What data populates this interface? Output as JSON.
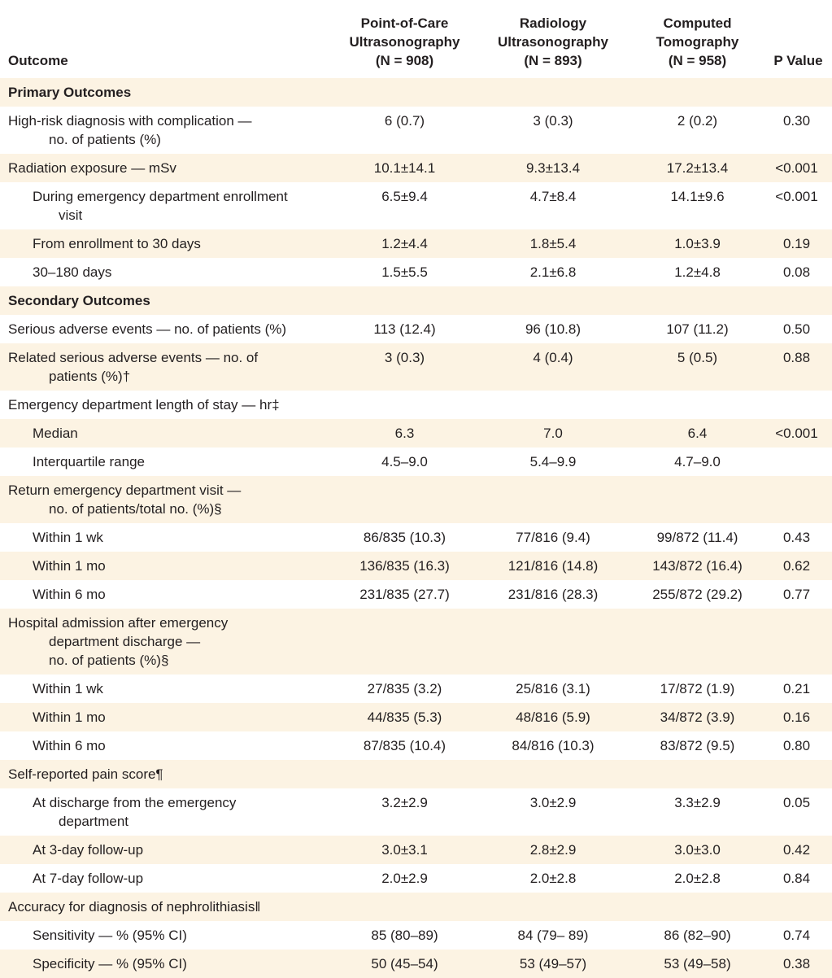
{
  "header": {
    "outcome": "Outcome",
    "col1": "Point-of-Care\nUltrasonography\n(N = 908)",
    "col2": "Radiology\nUltrasonography\n(N = 893)",
    "col3": "Computed\nTomography\n(N = 958)",
    "pvalue": "P Value"
  },
  "colors": {
    "row_shade": "#fcf3e3",
    "text": "#231f20"
  },
  "rows": [
    {
      "label": "Primary Outcomes",
      "section": true,
      "level": 0,
      "values": [
        "",
        "",
        "",
        ""
      ]
    },
    {
      "label": "High-risk diagnosis with complication —\nno. of patients (%)",
      "level": 0,
      "values": [
        "6 (0.7)",
        "3 (0.3)",
        "2 (0.2)",
        "0.30"
      ]
    },
    {
      "label": "Radiation exposure — mSv",
      "level": 0,
      "values": [
        "10.1±14.1",
        "9.3±13.4",
        "17.2±13.4",
        "<0.001"
      ]
    },
    {
      "label": "During emergency department enrollment\nvisit",
      "level": 1,
      "values": [
        "6.5±9.4",
        "4.7±8.4",
        "14.1±9.6",
        "<0.001"
      ]
    },
    {
      "label": "From enrollment to 30 days",
      "level": 1,
      "values": [
        "1.2±4.4",
        "1.8±5.4",
        "1.0±3.9",
        "0.19"
      ]
    },
    {
      "label": "30–180 days",
      "level": 1,
      "values": [
        "1.5±5.5",
        "2.1±6.8",
        "1.2±4.8",
        "0.08"
      ]
    },
    {
      "label": "Secondary Outcomes",
      "section": true,
      "level": 0,
      "values": [
        "",
        "",
        "",
        ""
      ]
    },
    {
      "label": "Serious adverse events — no. of patients (%)",
      "level": 0,
      "values": [
        "113 (12.4)",
        "96 (10.8)",
        "107 (11.2)",
        "0.50"
      ]
    },
    {
      "label": "Related serious adverse events — no. of\npatients (%)†",
      "level": 0,
      "values": [
        "3 (0.3)",
        "4 (0.4)",
        "5 (0.5)",
        "0.88"
      ]
    },
    {
      "label": "Emergency department length of stay — hr‡",
      "level": 0,
      "values": [
        "",
        "",
        "",
        ""
      ]
    },
    {
      "label": "Median",
      "level": 1,
      "values": [
        "6.3",
        "7.0",
        "6.4",
        "<0.001"
      ]
    },
    {
      "label": "Interquartile range",
      "level": 1,
      "values": [
        "4.5–9.0",
        "5.4–9.9",
        "4.7–9.0",
        ""
      ]
    },
    {
      "label": "Return emergency department visit —\nno. of patients/total no. (%)§",
      "level": 0,
      "values": [
        "",
        "",
        "",
        ""
      ]
    },
    {
      "label": "Within 1 wk",
      "level": 1,
      "values": [
        "86/835 (10.3)",
        "77/816 (9.4)",
        "99/872 (11.4)",
        "0.43"
      ]
    },
    {
      "label": "Within 1 mo",
      "level": 1,
      "values": [
        "136/835 (16.3)",
        "121/816 (14.8)",
        "143/872 (16.4)",
        "0.62"
      ]
    },
    {
      "label": "Within 6 mo",
      "level": 1,
      "values": [
        "231/835 (27.7)",
        "231/816 (28.3)",
        "255/872 (29.2)",
        "0.77"
      ]
    },
    {
      "label": "Hospital admission after emergency\ndepartment discharge —\nno. of patients (%)§",
      "level": 0,
      "values": [
        "",
        "",
        "",
        ""
      ]
    },
    {
      "label": "Within 1 wk",
      "level": 1,
      "values": [
        "27/835 (3.2)",
        "25/816 (3.1)",
        "17/872 (1.9)",
        "0.21"
      ]
    },
    {
      "label": "Within 1 mo",
      "level": 1,
      "values": [
        "44/835 (5.3)",
        "48/816 (5.9)",
        "34/872 (3.9)",
        "0.16"
      ]
    },
    {
      "label": "Within 6 mo",
      "level": 1,
      "values": [
        "87/835 (10.4)",
        "84/816 (10.3)",
        "83/872 (9.5)",
        "0.80"
      ]
    },
    {
      "label": "Self-reported pain score¶",
      "level": 0,
      "values": [
        "",
        "",
        "",
        ""
      ]
    },
    {
      "label": "At discharge from the emergency\ndepartment",
      "level": 1,
      "values": [
        "3.2±2.9",
        "3.0±2.9",
        "3.3±2.9",
        "0.05"
      ]
    },
    {
      "label": "At 3-day follow-up",
      "level": 1,
      "values": [
        "3.0±3.1",
        "2.8±2.9",
        "3.0±3.0",
        "0.42"
      ]
    },
    {
      "label": "At 7-day follow-up",
      "level": 1,
      "values": [
        "2.0±2.9",
        "2.0±2.8",
        "2.0±2.8",
        "0.84"
      ]
    },
    {
      "label": "Accuracy for diagnosis of nephrolithiasis‖",
      "level": 0,
      "values": [
        "",
        "",
        "",
        ""
      ]
    },
    {
      "label": "Sensitivity — % (95% CI)",
      "level": 1,
      "values": [
        "85 (80–89)",
        "84 (79– 89)",
        "86 (82–90)",
        "0.74"
      ]
    },
    {
      "label": "Specificity — % (95% CI)",
      "level": 1,
      "values": [
        "50 (45–54)",
        "53 (49–57)",
        "53 (49–58)",
        "0.38"
      ]
    }
  ]
}
